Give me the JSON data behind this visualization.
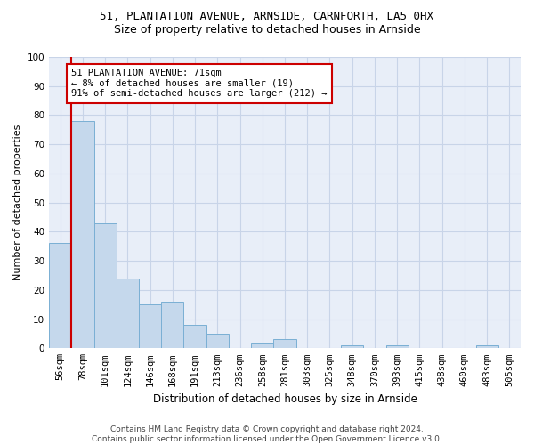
{
  "title1": "51, PLANTATION AVENUE, ARNSIDE, CARNFORTH, LA5 0HX",
  "title2": "Size of property relative to detached houses in Arnside",
  "xlabel": "Distribution of detached houses by size in Arnside",
  "ylabel": "Number of detached properties",
  "categories": [
    "56sqm",
    "78sqm",
    "101sqm",
    "124sqm",
    "146sqm",
    "168sqm",
    "191sqm",
    "213sqm",
    "236sqm",
    "258sqm",
    "281sqm",
    "303sqm",
    "325sqm",
    "348sqm",
    "370sqm",
    "393sqm",
    "415sqm",
    "438sqm",
    "460sqm",
    "483sqm",
    "505sqm"
  ],
  "values": [
    36,
    78,
    43,
    24,
    15,
    16,
    8,
    5,
    0,
    2,
    3,
    0,
    0,
    1,
    0,
    1,
    0,
    0,
    0,
    1,
    0
  ],
  "bar_color": "#c5d8ec",
  "bar_edge_color": "#7aafd4",
  "grid_color": "#c8d4e8",
  "background_color": "#e8eef8",
  "vline_color": "#cc0000",
  "annotation_text": "51 PLANTATION AVENUE: 71sqm\n← 8% of detached houses are smaller (19)\n91% of semi-detached houses are larger (212) →",
  "annotation_box_facecolor": "#ffffff",
  "annotation_box_edgecolor": "#cc0000",
  "footer_text": "Contains HM Land Registry data © Crown copyright and database right 2024.\nContains public sector information licensed under the Open Government Licence v3.0.",
  "ylim": [
    0,
    100
  ],
  "yticks": [
    0,
    10,
    20,
    30,
    40,
    50,
    60,
    70,
    80,
    90,
    100
  ],
  "title1_fontsize": 9,
  "title2_fontsize": 9,
  "xlabel_fontsize": 8.5,
  "ylabel_fontsize": 8,
  "tick_fontsize": 7.5,
  "annotation_fontsize": 7.5,
  "footer_fontsize": 6.5
}
